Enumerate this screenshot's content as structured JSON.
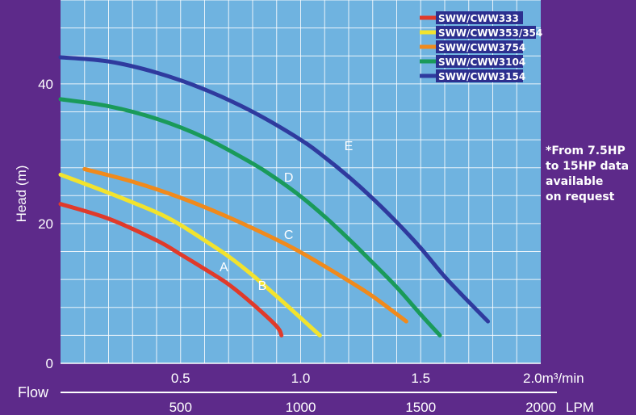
{
  "note": {
    "lines": [
      "*From 7.5HP",
      "to 15HP data",
      "available",
      "on request"
    ]
  },
  "colors": {
    "background": "#5d2a8a",
    "plot_area": "#6fb3e0",
    "grid": "#ffffff",
    "axis_text": "#ffffff",
    "legend_bg": "#2c2f8f"
  },
  "chart_data": {
    "type": "line",
    "ylabel": "Head (m)",
    "xlabel": "Flow",
    "ylim": [
      0,
      52
    ],
    "y_ticks": [
      0,
      20,
      40
    ],
    "x_ticks_m3": [
      {
        "value": 0.5,
        "label": "0.5"
      },
      {
        "value": 1.0,
        "label": "1.0"
      },
      {
        "value": 1.5,
        "label": "1.5"
      },
      {
        "value": 2.0,
        "label": "2.0m³/min"
      }
    ],
    "x_ticks_lpm": [
      {
        "value": 500,
        "label": "500"
      },
      {
        "value": 1000,
        "label": "1000"
      },
      {
        "value": 1500,
        "label": "1500"
      },
      {
        "value": 2000,
        "label": "2000"
      }
    ],
    "lpm_unit": "LPM",
    "xlim_lpm": [
      0,
      2000
    ],
    "grid": true,
    "legend_position": "top-right",
    "series": [
      {
        "name": "SWW/CWW333",
        "curve_label": "A",
        "color": "#e03a2a",
        "x": [
          0,
          200,
          400,
          500,
          600,
          700,
          800,
          900,
          920
        ],
        "y": [
          22.8,
          20.7,
          17.6,
          15.6,
          13.5,
          11.3,
          8.5,
          5.3,
          4.0
        ],
        "label_at": [
          680,
          13.2
        ]
      },
      {
        "name": "SWW/CWW353/354",
        "curve_label": "B",
        "color": "#f2e32e",
        "x": [
          0,
          200,
          400,
          500,
          600,
          700,
          800,
          900,
          1000,
          1080
        ],
        "y": [
          27.0,
          24.4,
          21.6,
          19.8,
          17.6,
          15.3,
          12.6,
          9.6,
          6.5,
          4.0
        ],
        "label_at": [
          840,
          10.5
        ]
      },
      {
        "name": "SWW/CWW3754",
        "curve_label": "C",
        "color": "#f08a1c",
        "x": [
          100,
          300,
          500,
          700,
          900,
          1000,
          1100,
          1200,
          1300,
          1440
        ],
        "y": [
          27.8,
          26.0,
          23.7,
          20.9,
          17.7,
          15.9,
          13.9,
          11.8,
          9.6,
          6.0
        ],
        "label_at": [
          950,
          17.8
        ]
      },
      {
        "name": "SWW/CWW3104",
        "curve_label": "D",
        "color": "#1a9a5a",
        "x": [
          0,
          200,
          400,
          600,
          800,
          900,
          1000,
          1100,
          1200,
          1300,
          1400,
          1500,
          1580
        ],
        "y": [
          37.8,
          36.8,
          35.0,
          32.3,
          28.6,
          26.4,
          23.9,
          21.0,
          17.8,
          14.4,
          10.9,
          7.0,
          4.0
        ],
        "label_at": [
          950,
          26.0
        ]
      },
      {
        "name": "SWW/CWW3154",
        "curve_label": "E",
        "color": "#2f3a9e",
        "x": [
          0,
          200,
          400,
          600,
          800,
          1000,
          1100,
          1200,
          1300,
          1400,
          1500,
          1600,
          1700,
          1780
        ],
        "y": [
          43.8,
          43.2,
          41.6,
          39.2,
          36.0,
          32.0,
          29.5,
          26.7,
          23.6,
          20.2,
          16.5,
          12.4,
          8.8,
          6.0
        ],
        "label_at": [
          1200,
          30.5
        ]
      }
    ]
  }
}
